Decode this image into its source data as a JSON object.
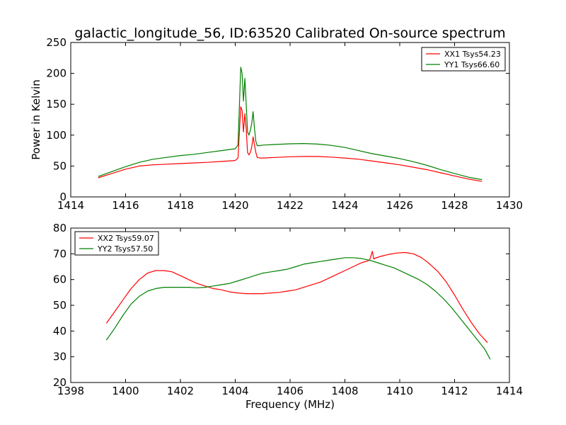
{
  "chart_data": [
    {
      "type": "line",
      "title": "galactic_longitude_56, ID:63520 Calibrated On-source spectrum",
      "xlabel": "",
      "ylabel": "Power in Kelvin",
      "xlim": [
        1414,
        1430
      ],
      "ylim": [
        0,
        250
      ],
      "xticks": [
        "1414",
        "1416",
        "1418",
        "1420",
        "1422",
        "1424",
        "1426",
        "1428",
        "1430"
      ],
      "yticks": [
        "0",
        "50",
        "100",
        "150",
        "200",
        "250"
      ],
      "legend_position": "upper right",
      "series": [
        {
          "name": "XX1 Tsys54.23",
          "color": "#ff0000",
          "x": [
            1415.0,
            1415.5,
            1416.0,
            1416.5,
            1417.0,
            1417.5,
            1418.0,
            1418.5,
            1419.0,
            1419.5,
            1420.0,
            1420.1,
            1420.2,
            1420.25,
            1420.3,
            1420.35,
            1420.4,
            1420.45,
            1420.5,
            1420.55,
            1420.6,
            1420.65,
            1420.7,
            1420.75,
            1420.8,
            1420.9,
            1421.0,
            1421.5,
            1422.0,
            1422.5,
            1423.0,
            1423.5,
            1424.0,
            1424.5,
            1425.0,
            1425.5,
            1426.0,
            1426.5,
            1427.0,
            1427.5,
            1428.0,
            1428.5,
            1429.0
          ],
          "values": [
            31,
            38,
            45,
            50,
            52,
            53,
            54,
            55,
            56,
            57.5,
            59,
            63,
            146,
            140,
            105,
            135,
            110,
            72,
            68,
            72,
            80,
            97,
            85,
            72,
            64,
            63,
            63,
            64,
            65,
            65.5,
            65.5,
            64.5,
            63,
            61,
            58,
            55,
            52,
            48,
            44,
            39,
            34,
            29,
            25
          ]
        },
        {
          "name": "YY1 Tsys66.60",
          "color": "#008000",
          "x": [
            1415.0,
            1415.5,
            1416.0,
            1416.5,
            1417.0,
            1417.5,
            1418.0,
            1418.5,
            1419.0,
            1419.5,
            1420.0,
            1420.1,
            1420.2,
            1420.25,
            1420.3,
            1420.35,
            1420.4,
            1420.45,
            1420.5,
            1420.55,
            1420.6,
            1420.65,
            1420.7,
            1420.75,
            1420.8,
            1420.9,
            1421.0,
            1421.5,
            1422.0,
            1422.5,
            1423.0,
            1423.5,
            1424.0,
            1424.5,
            1425.0,
            1425.5,
            1426.0,
            1426.5,
            1427.0,
            1427.5,
            1428.0,
            1428.5,
            1429.0
          ],
          "values": [
            33,
            41,
            49,
            56,
            61,
            64,
            67,
            69,
            72,
            75,
            78,
            84,
            210,
            200,
            155,
            192,
            150,
            105,
            100,
            108,
            118,
            138,
            112,
            90,
            83,
            83,
            84,
            85,
            86,
            86.5,
            85.5,
            83.5,
            80,
            75,
            70,
            66,
            62,
            57,
            51,
            44,
            38,
            32,
            28
          ]
        }
      ]
    },
    {
      "type": "line",
      "title": "",
      "xlabel": "Frequency (MHz)",
      "ylabel": "",
      "xlim": [
        1398,
        1414
      ],
      "ylim": [
        20,
        80
      ],
      "xticks": [
        "1398",
        "1400",
        "1402",
        "1404",
        "1406",
        "1408",
        "1410",
        "1412",
        "1414"
      ],
      "yticks": [
        "20",
        "30",
        "40",
        "50",
        "60",
        "70",
        "80"
      ],
      "legend_position": "upper left",
      "series": [
        {
          "name": "XX2 Tsys59.07",
          "color": "#ff0000",
          "x": [
            1399.3,
            1399.6,
            1399.9,
            1400.2,
            1400.5,
            1400.8,
            1401.1,
            1401.4,
            1401.7,
            1402.0,
            1402.3,
            1402.6,
            1402.9,
            1403.2,
            1403.5,
            1403.8,
            1404.1,
            1404.4,
            1404.7,
            1405.0,
            1405.3,
            1405.6,
            1405.9,
            1406.2,
            1406.5,
            1406.8,
            1407.1,
            1407.4,
            1407.7,
            1408.0,
            1408.3,
            1408.6,
            1408.9,
            1409.0,
            1409.05,
            1409.1,
            1409.3,
            1409.6,
            1409.9,
            1410.2,
            1410.5,
            1410.8,
            1411.1,
            1411.4,
            1411.7,
            1412.0,
            1412.3,
            1412.6,
            1412.9,
            1413.2
          ],
          "values": [
            43,
            47.5,
            52,
            56.5,
            60,
            62.5,
            63.5,
            63.5,
            63,
            61.5,
            60,
            58.5,
            57.5,
            56.5,
            56,
            55.2,
            54.8,
            54.5,
            54.5,
            54.5,
            54.8,
            55,
            55.5,
            56,
            57,
            58,
            59,
            60.5,
            62,
            63.5,
            65,
            66.5,
            67.5,
            71,
            68,
            68.3,
            69,
            69.8,
            70.3,
            70.5,
            70,
            68.5,
            66,
            63,
            59,
            54,
            48.5,
            43.5,
            39,
            35.5
          ]
        },
        {
          "name": "YY2 Tsys57.50",
          "color": "#008000",
          "x": [
            1399.3,
            1399.6,
            1399.9,
            1400.2,
            1400.5,
            1400.8,
            1401.1,
            1401.4,
            1401.7,
            1402.0,
            1402.3,
            1402.6,
            1402.9,
            1403.2,
            1403.5,
            1403.8,
            1404.1,
            1404.4,
            1404.7,
            1405.0,
            1405.3,
            1405.6,
            1405.9,
            1406.2,
            1406.5,
            1406.8,
            1407.1,
            1407.4,
            1407.7,
            1408.0,
            1408.3,
            1408.6,
            1408.9,
            1409.2,
            1409.5,
            1409.8,
            1410.1,
            1410.4,
            1410.7,
            1411.0,
            1411.3,
            1411.6,
            1411.9,
            1412.2,
            1412.5,
            1412.8,
            1413.1,
            1413.3
          ],
          "values": [
            36.5,
            41,
            46,
            50.5,
            53.5,
            55.5,
            56.5,
            57,
            57,
            57,
            57,
            56.8,
            57,
            57.5,
            58,
            58.5,
            59.5,
            60.5,
            61.5,
            62.5,
            63,
            63.5,
            64,
            65,
            66,
            66.5,
            67,
            67.5,
            68,
            68.5,
            68.5,
            68.2,
            67.5,
            66.5,
            65.5,
            64.5,
            63,
            61.5,
            60,
            58,
            55.5,
            52.5,
            49,
            45,
            41,
            37,
            33,
            29
          ]
        }
      ]
    }
  ]
}
